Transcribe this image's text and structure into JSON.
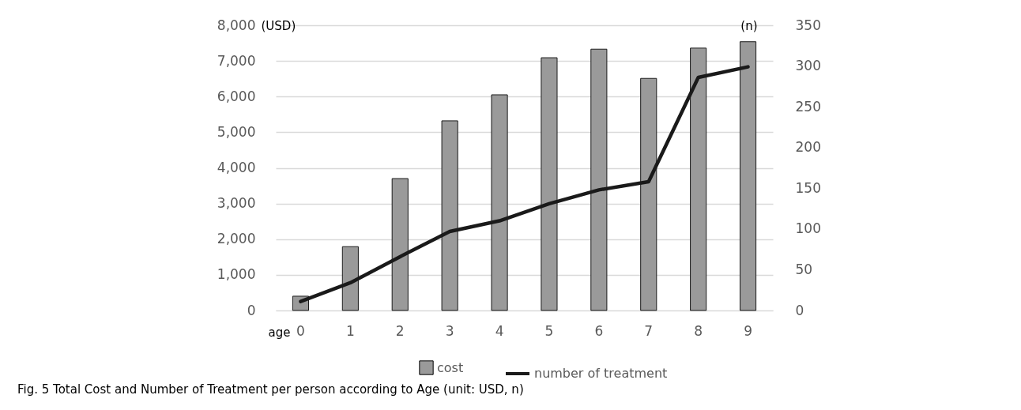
{
  "chart_data": {
    "type": "bar",
    "title": "Fig. 5 Total Cost and Number of Treatment per person according to Age (unit: USD, n)",
    "xlabel": "age",
    "ylabel": "(USD)",
    "y2label": "(n)",
    "categories": [
      "0",
      "1",
      "2",
      "3",
      "4",
      "5",
      "6",
      "7",
      "8",
      "9"
    ],
    "series": [
      {
        "name": "cost",
        "color": "#9a9a9a",
        "values": [
          400,
          1790,
          3700,
          5320,
          6050,
          7090,
          7330,
          6510,
          7360,
          7540
        ]
      },
      {
        "name": "number of treatment",
        "type": "line",
        "axis": "y2",
        "color": "#1a1a1a",
        "values": [
          11,
          34,
          66,
          97,
          110,
          131,
          148,
          158,
          286,
          299
        ]
      }
    ],
    "ylim": [
      0,
      8000
    ],
    "yticks": [
      0,
      {
        "value": 1000,
        "label": "1,000"
      },
      {
        "value": 2000,
        "label": "2,000"
      },
      {
        "value": 3000,
        "label": "3,000"
      },
      {
        "value": 4000,
        "label": "4,000"
      },
      {
        "value": 5000,
        "label": "5,000"
      },
      {
        "value": 6000,
        "label": "6,000"
      },
      {
        "value": 7000,
        "label": "7,000"
      },
      {
        "value": 8000,
        "label": "8,000"
      }
    ],
    "y2lim": [
      0,
      350
    ],
    "y2ticks": [
      0,
      50,
      100,
      150,
      200,
      250,
      300,
      350
    ],
    "grid": "y",
    "legend": "bottom",
    "marker": "none"
  }
}
